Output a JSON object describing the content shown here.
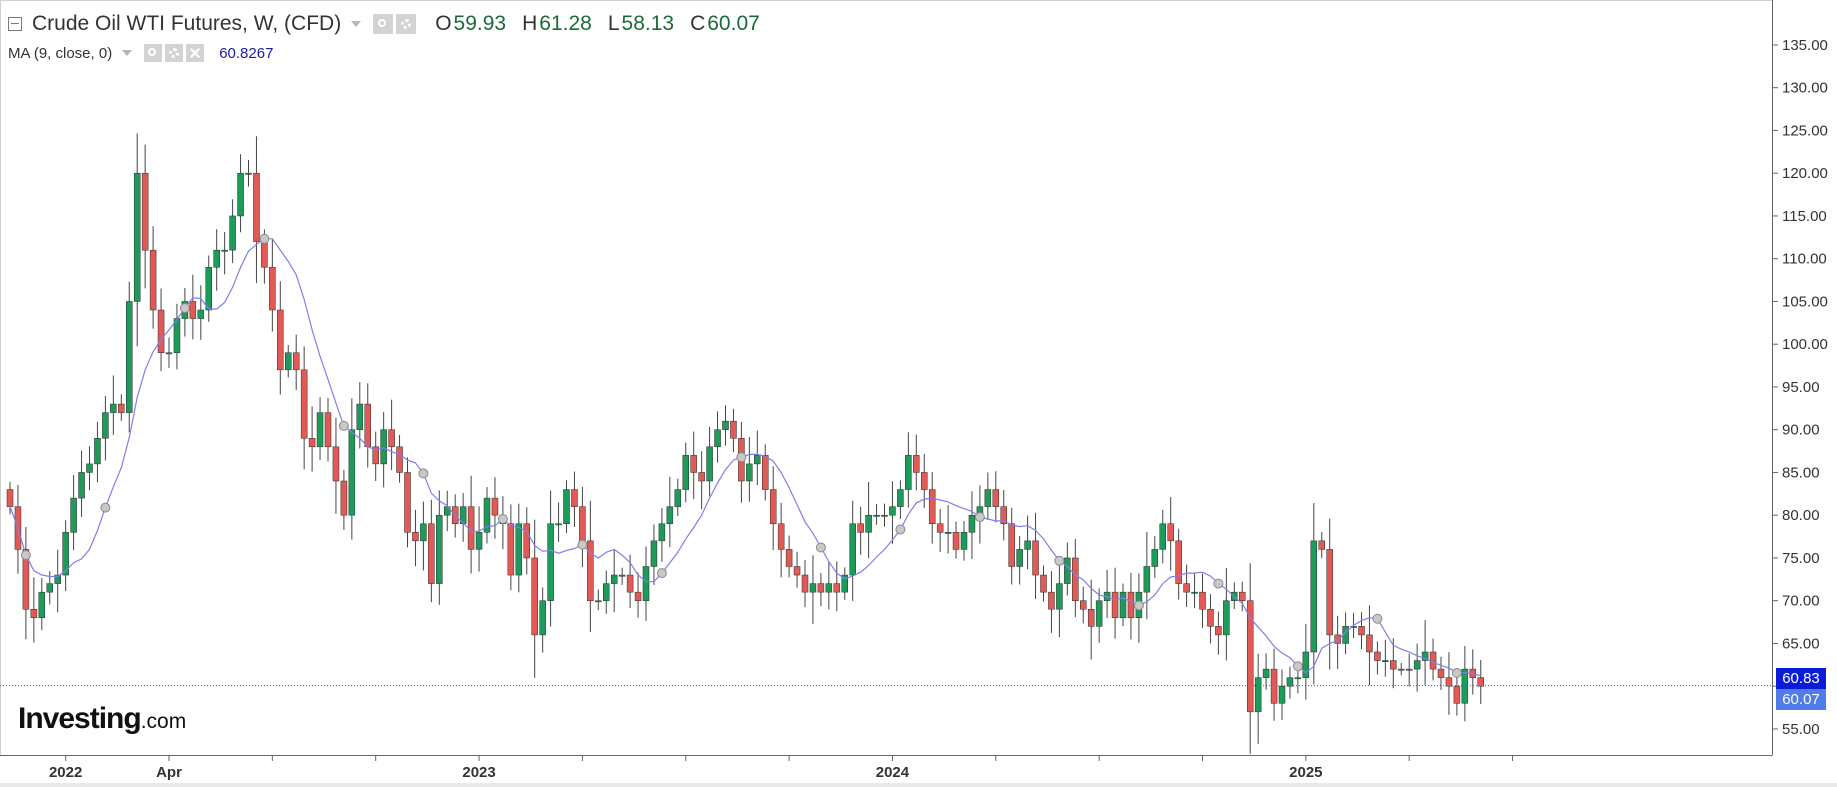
{
  "legend": {
    "instrument": "Crude Oil WTI Futures, W, (CFD)",
    "open_label": "O",
    "open": "59.93",
    "high_label": "H",
    "high": "61.28",
    "low_label": "L",
    "low": "58.13",
    "close_label": "C",
    "close": "60.07",
    "ma_label": "MA (9, close, 0)",
    "ma_value": "60.8267"
  },
  "logo": {
    "word": "Investing",
    "suffix": ".com"
  },
  "price_tags": {
    "ma": "60.83",
    "close": "60.07"
  },
  "colors": {
    "up": "#1e9b5a",
    "down": "#e25a55",
    "wick": "#444444",
    "ma_line": "#7f7fea",
    "ma_tag": "#0b1cd6",
    "close_tag": "#4f7ce8",
    "price_line": "#3a4fe0",
    "axis": "#666666",
    "axis_text": "#333333",
    "marker": "#c8c8c8"
  },
  "chart_data": {
    "type": "candlestick",
    "title": "Crude Oil WTI Futures, W, (CFD)",
    "timeframe": "weekly",
    "ylim": [
      52,
      139
    ],
    "y_axis_position": "right",
    "y_ticks": [
      "55.00",
      "60.00",
      "65.00",
      "70.00",
      "75.00",
      "80.00",
      "85.00",
      "90.00",
      "95.00",
      "100.00",
      "105.00",
      "110.00",
      "115.00",
      "120.00",
      "125.00",
      "130.00",
      "135.00"
    ],
    "x_axis_labels": [
      {
        "label": "2022",
        "index": 7
      },
      {
        "label": "Apr",
        "index": 20
      },
      {
        "label": "2023",
        "index": 59
      },
      {
        "label": "2024",
        "index": 111
      },
      {
        "label": "2025",
        "index": 163
      }
    ],
    "minor_ticks": [
      33,
      46,
      72,
      85,
      98,
      124,
      137,
      150,
      176,
      189
    ],
    "close_series": [
      81,
      76,
      69,
      68,
      71,
      72,
      73,
      78,
      82,
      85,
      86,
      89,
      92,
      93,
      92,
      105,
      120,
      111,
      104,
      99,
      99,
      103,
      105,
      103,
      104,
      109,
      111,
      111,
      115,
      120,
      120,
      112,
      109,
      104,
      97,
      99,
      97,
      89,
      88,
      92,
      88,
      84,
      80,
      90,
      93,
      88,
      86,
      90,
      88,
      85,
      78,
      77,
      79,
      72,
      80,
      81,
      79,
      81,
      76,
      78,
      82,
      80,
      79,
      73,
      79,
      75,
      66,
      70,
      79,
      79,
      83,
      81,
      77,
      70,
      70,
      72,
      73,
      73,
      71,
      70,
      74,
      77,
      79,
      81,
      83,
      87,
      85,
      84,
      88,
      90,
      91,
      89,
      84,
      86,
      87,
      83,
      79,
      76,
      74,
      73,
      71,
      72,
      71,
      72,
      71,
      73,
      79,
      78,
      80,
      80,
      80,
      81,
      83,
      87,
      85,
      83,
      79,
      78,
      78,
      76,
      78,
      80,
      81,
      83,
      81,
      79,
      74,
      76,
      77,
      73,
      71,
      69,
      72,
      75,
      70,
      69,
      67,
      70,
      71,
      68,
      71,
      68,
      71,
      74,
      76,
      79,
      77,
      72,
      71,
      71,
      69,
      67,
      66,
      70,
      71,
      70,
      57,
      61,
      62,
      58,
      60,
      61,
      61,
      64,
      77,
      76,
      66,
      65,
      67,
      67,
      66,
      64,
      63,
      63,
      62,
      62,
      62,
      63,
      64,
      62,
      61,
      60,
      58,
      62,
      61,
      60
    ],
    "ma_series_label": "MA (9, close, 0)",
    "last_close": 60.07,
    "last_ma": 60.8267
  }
}
